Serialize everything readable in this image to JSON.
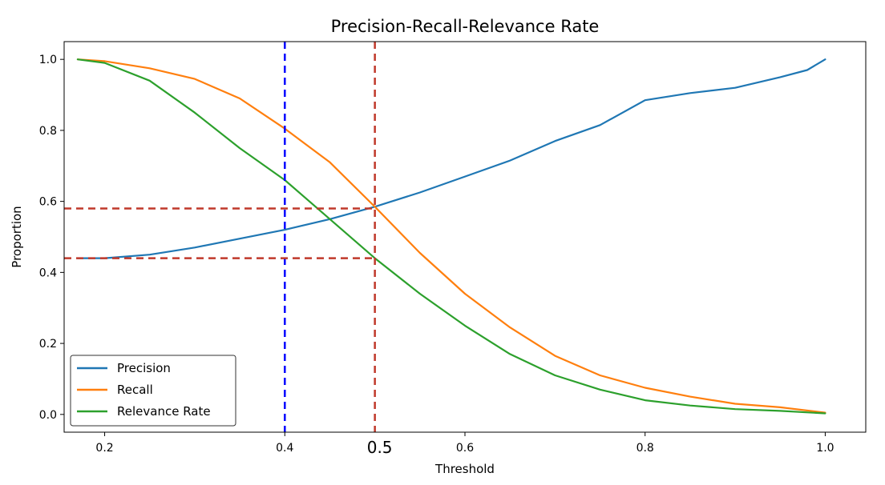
{
  "chart_data": {
    "type": "line",
    "title": "Precision-Recall-Relevance Rate",
    "xlabel": "Threshold",
    "ylabel": "Proportion",
    "xlim": [
      0.155,
      1.045
    ],
    "ylim": [
      -0.05,
      1.05
    ],
    "xticks": [
      0.2,
      0.4,
      0.6,
      0.8,
      1.0
    ],
    "xtick_labels": [
      "0.2",
      "0.4",
      "0.6",
      "0.8",
      "1.0"
    ],
    "yticks": [
      0.0,
      0.2,
      0.4,
      0.6,
      0.8,
      1.0
    ],
    "ytick_labels": [
      "0.0",
      "0.2",
      "0.4",
      "0.6",
      "0.8",
      "1.0"
    ],
    "grid": false,
    "legend_position": "lower-left",
    "series": [
      {
        "name": "Precision",
        "color": "#1f77b4",
        "x": [
          0.17,
          0.2,
          0.25,
          0.3,
          0.35,
          0.4,
          0.45,
          0.5,
          0.55,
          0.6,
          0.65,
          0.7,
          0.75,
          0.8,
          0.85,
          0.9,
          0.95,
          0.98,
          1.0
        ],
        "y": [
          0.44,
          0.44,
          0.45,
          0.47,
          0.495,
          0.52,
          0.55,
          0.585,
          0.625,
          0.67,
          0.715,
          0.77,
          0.815,
          0.885,
          0.905,
          0.92,
          0.95,
          0.97,
          1.0
        ]
      },
      {
        "name": "Recall",
        "color": "#ff7f0e",
        "x": [
          0.17,
          0.2,
          0.25,
          0.3,
          0.35,
          0.4,
          0.45,
          0.5,
          0.55,
          0.6,
          0.65,
          0.7,
          0.75,
          0.8,
          0.85,
          0.9,
          0.95,
          1.0
        ],
        "y": [
          1.0,
          0.995,
          0.975,
          0.945,
          0.89,
          0.805,
          0.71,
          0.585,
          0.455,
          0.34,
          0.245,
          0.165,
          0.11,
          0.075,
          0.05,
          0.03,
          0.02,
          0.005
        ]
      },
      {
        "name": "Relevance Rate",
        "color": "#2ca02c",
        "x": [
          0.17,
          0.2,
          0.25,
          0.3,
          0.35,
          0.4,
          0.45,
          0.5,
          0.55,
          0.6,
          0.65,
          0.7,
          0.75,
          0.8,
          0.85,
          0.9,
          0.95,
          1.0
        ],
        "y": [
          1.0,
          0.99,
          0.94,
          0.85,
          0.75,
          0.66,
          0.55,
          0.44,
          0.34,
          0.25,
          0.17,
          0.11,
          0.07,
          0.04,
          0.025,
          0.015,
          0.01,
          0.003
        ]
      }
    ],
    "reference_lines": [
      {
        "orientation": "vertical",
        "x": 0.4,
        "color": "#0000ff",
        "style": "dashed"
      },
      {
        "orientation": "vertical",
        "x": 0.5,
        "color": "#c0392b",
        "style": "dashed"
      },
      {
        "orientation": "horizontal",
        "y": 0.58,
        "x_end": 0.5,
        "color": "#c0392b",
        "style": "dashed"
      },
      {
        "orientation": "horizontal",
        "y": 0.44,
        "x_end": 0.5,
        "color": "#c0392b",
        "style": "dashed"
      }
    ],
    "annotations": [
      {
        "text": "0.5",
        "x": 0.5
      }
    ]
  }
}
